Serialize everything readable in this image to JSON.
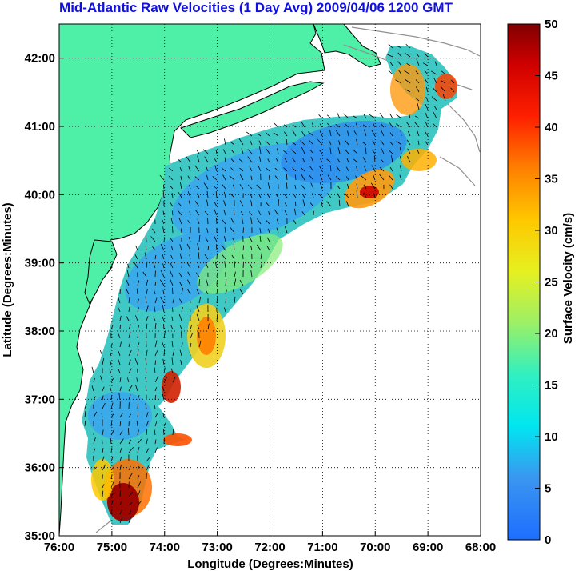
{
  "title": "Mid-Atlantic Raw Velocities (1 Day Avg) 2009/04/06 1200 GMT",
  "map": {
    "xlabel": "Longitude (Degrees:Minutes)",
    "ylabel": "Latitude (Degrees:Minutes)",
    "x_ticks": [
      "76:00",
      "75:00",
      "74:00",
      "73:00",
      "72:00",
      "71:00",
      "70:00",
      "69:00",
      "68:00"
    ],
    "y_ticks": [
      "42:00",
      "41:00",
      "40:00",
      "39:00",
      "38:00",
      "37:00",
      "36:00",
      "35:00"
    ],
    "lon_range": [
      -76,
      -68
    ],
    "lat_range": [
      35,
      42.5
    ],
    "grid": "dotted",
    "land_color": "#4ef0a8",
    "coast_color": "#000000",
    "bathymetry_color": "#909090"
  },
  "colorbar": {
    "label": "Surface Velocity (cm/s)",
    "ticks": [
      "0",
      "5",
      "10",
      "15",
      "20",
      "25",
      "30",
      "35",
      "40",
      "45",
      "50"
    ],
    "range": [
      0,
      50
    ]
  }
}
